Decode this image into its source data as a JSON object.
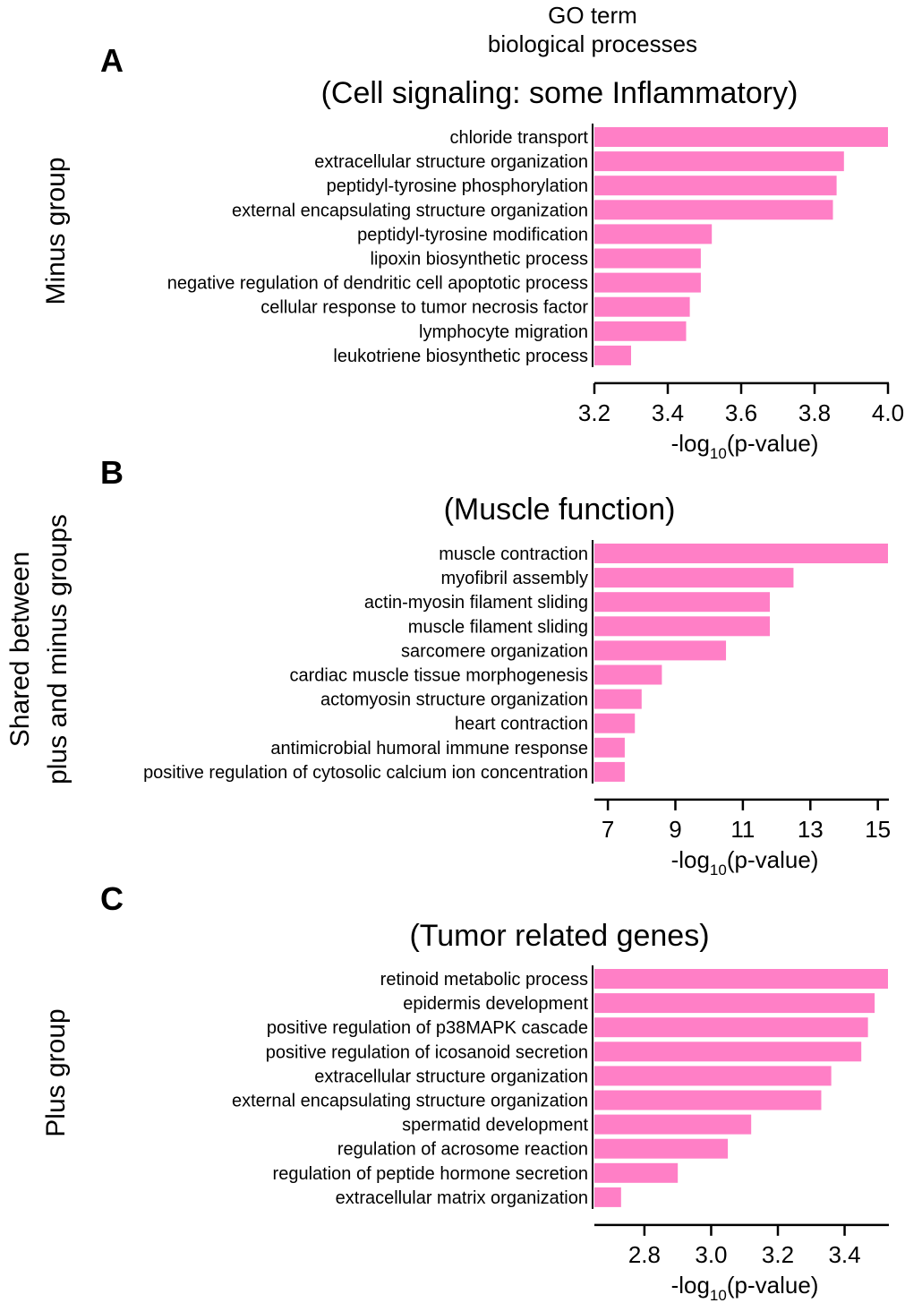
{
  "header": {
    "line1": "GO term",
    "line2": "biological processes"
  },
  "colors": {
    "bar": "#ff7fc6",
    "axis": "#000000",
    "text": "#000000"
  },
  "chart_data": [
    {
      "type": "bar",
      "orientation": "horizontal",
      "panel_letter": "A",
      "side_label": [
        "Minus group"
      ],
      "title": "(Cell signaling: some Inflammatory)",
      "xlabel": {
        "prefix": "-log",
        "sub": "10",
        "suffix": "(p-value)"
      },
      "xlim": [
        3.2,
        4.0
      ],
      "xticks": [
        "3.2",
        "3.4",
        "3.6",
        "3.8",
        "4.0"
      ],
      "tick_values": [
        3.2,
        3.4,
        3.6,
        3.8,
        4.0
      ],
      "categories": [
        "chloride transport",
        "extracellular structure organization",
        "peptidyl-tyrosine phosphorylation",
        "external encapsulating structure organization",
        "peptidyl-tyrosine modification",
        "lipoxin biosynthetic process",
        "negative regulation of dendritic cell apoptotic process",
        "cellular response to tumor necrosis factor",
        "lymphocyte migration",
        "leukotriene biosynthetic process"
      ],
      "values": [
        4.0,
        3.88,
        3.86,
        3.85,
        3.52,
        3.49,
        3.49,
        3.46,
        3.45,
        3.3
      ]
    },
    {
      "type": "bar",
      "orientation": "horizontal",
      "panel_letter": "B",
      "side_label": [
        "Shared between",
        "plus and minus groups"
      ],
      "title": "(Muscle function)",
      "xlabel": {
        "prefix": "-log",
        "sub": "10",
        "suffix": "(p-value)"
      },
      "xlim": [
        6.6,
        15.3
      ],
      "xticks": [
        "7",
        "9",
        "11",
        "13",
        "15"
      ],
      "tick_values": [
        7,
        9,
        11,
        13,
        15
      ],
      "categories": [
        "muscle contraction",
        "myofibril assembly",
        "actin-myosin filament sliding",
        "muscle filament sliding",
        "sarcomere organization",
        "cardiac muscle tissue morphogenesis",
        "actomyosin structure organization",
        "heart contraction",
        "antimicrobial humoral immune response",
        "positive regulation of cytosolic calcium ion concentration"
      ],
      "values": [
        15.3,
        12.5,
        11.8,
        11.8,
        10.5,
        8.6,
        8.0,
        7.8,
        7.5,
        7.5
      ]
    },
    {
      "type": "bar",
      "orientation": "horizontal",
      "panel_letter": "C",
      "side_label": [
        "Plus group"
      ],
      "title": "(Tumor related genes)",
      "xlabel": {
        "prefix": "-log",
        "sub": "10",
        "suffix": "(p-value)"
      },
      "xlim": [
        2.65,
        3.53
      ],
      "xticks": [
        "2.8",
        "3.0",
        "3.2",
        "3.4"
      ],
      "tick_values": [
        2.8,
        3.0,
        3.2,
        3.4
      ],
      "categories": [
        "retinoid metabolic process",
        "epidermis development",
        "positive regulation of p38MAPK cascade",
        "positive regulation of icosanoid secretion",
        "extracellular structure organization",
        "external encapsulating structure organization",
        "spermatid development",
        "regulation of acrosome reaction",
        "regulation of peptide hormone secretion",
        "extracellular matrix organization"
      ],
      "values": [
        3.53,
        3.49,
        3.47,
        3.45,
        3.36,
        3.33,
        3.12,
        3.05,
        2.9,
        2.73
      ]
    }
  ]
}
